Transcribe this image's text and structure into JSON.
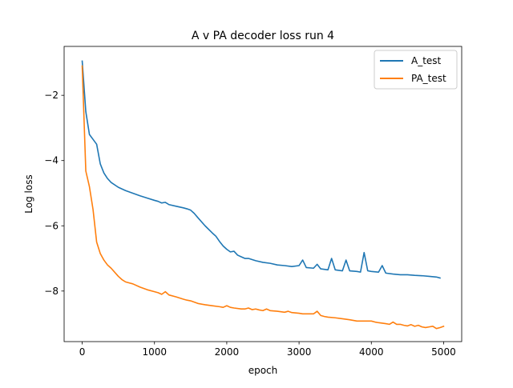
{
  "chart_data": {
    "type": "line",
    "title": "A v PA  decoder loss run 4",
    "xlabel": "epoch",
    "ylabel": "Log loss",
    "xlim": [
      -250,
      5250
    ],
    "ylim": [
      -9.55,
      -0.5
    ],
    "xticks": [
      0,
      1000,
      2000,
      3000,
      4000,
      5000
    ],
    "xtick_labels": [
      "0",
      "1000",
      "2000",
      "3000",
      "4000",
      "5000"
    ],
    "yticks": [
      -8,
      -6,
      -4,
      -2
    ],
    "ytick_labels": [
      "−8",
      "−6",
      "−4",
      "−2"
    ],
    "grid": false,
    "legend_position": "top-right",
    "series": [
      {
        "name": "A_test",
        "color": "#1f77b4",
        "x": [
          0,
          50,
          100,
          150,
          200,
          250,
          300,
          350,
          400,
          500,
          600,
          700,
          800,
          900,
          1000,
          1050,
          1100,
          1150,
          1200,
          1300,
          1400,
          1450,
          1500,
          1550,
          1600,
          1700,
          1800,
          1850,
          1900,
          1950,
          2000,
          2050,
          2100,
          2150,
          2200,
          2250,
          2300,
          2400,
          2500,
          2600,
          2700,
          2800,
          2900,
          3000,
          3050,
          3100,
          3200,
          3250,
          3300,
          3400,
          3450,
          3500,
          3600,
          3650,
          3700,
          3800,
          3850,
          3900,
          3950,
          4000,
          4100,
          4150,
          4200,
          4300,
          4400,
          4500,
          4600,
          4700,
          4800,
          4900,
          4950
        ],
        "y": [
          -0.95,
          -2.5,
          -3.2,
          -3.35,
          -3.5,
          -4.1,
          -4.38,
          -4.55,
          -4.67,
          -4.82,
          -4.92,
          -5.0,
          -5.08,
          -5.15,
          -5.22,
          -5.25,
          -5.3,
          -5.28,
          -5.35,
          -5.4,
          -5.45,
          -5.48,
          -5.52,
          -5.62,
          -5.75,
          -6.0,
          -6.22,
          -6.32,
          -6.48,
          -6.62,
          -6.72,
          -6.8,
          -6.78,
          -6.9,
          -6.95,
          -7.0,
          -7.0,
          -7.07,
          -7.12,
          -7.15,
          -7.2,
          -7.22,
          -7.25,
          -7.22,
          -7.05,
          -7.28,
          -7.3,
          -7.18,
          -7.32,
          -7.35,
          -7.0,
          -7.35,
          -7.38,
          -7.05,
          -7.38,
          -7.4,
          -7.42,
          -6.82,
          -7.38,
          -7.4,
          -7.42,
          -7.22,
          -7.45,
          -7.48,
          -7.5,
          -7.5,
          -7.52,
          -7.53,
          -7.55,
          -7.57,
          -7.6
        ]
      },
      {
        "name": "PA_test",
        "color": "#ff7f0e",
        "x": [
          0,
          50,
          100,
          150,
          200,
          250,
          300,
          350,
          400,
          500,
          550,
          600,
          650,
          700,
          800,
          900,
          1000,
          1050,
          1100,
          1150,
          1200,
          1300,
          1400,
          1450,
          1500,
          1600,
          1700,
          1800,
          1900,
          1950,
          2000,
          2050,
          2100,
          2200,
          2250,
          2300,
          2350,
          2400,
          2450,
          2500,
          2550,
          2600,
          2700,
          2800,
          2850,
          2900,
          3000,
          3050,
          3100,
          3200,
          3250,
          3300,
          3350,
          3400,
          3500,
          3600,
          3700,
          3800,
          3900,
          4000,
          4050,
          4100,
          4200,
          4250,
          4300,
          4350,
          4400,
          4450,
          4500,
          4550,
          4600,
          4650,
          4700,
          4750,
          4800,
          4850,
          4900,
          4950,
          5000
        ],
        "y": [
          -1.1,
          -4.32,
          -4.8,
          -5.5,
          -6.5,
          -6.85,
          -7.05,
          -7.2,
          -7.3,
          -7.55,
          -7.65,
          -7.72,
          -7.75,
          -7.78,
          -7.88,
          -7.96,
          -8.02,
          -8.05,
          -8.1,
          -8.02,
          -8.12,
          -8.18,
          -8.25,
          -8.28,
          -8.3,
          -8.38,
          -8.42,
          -8.45,
          -8.48,
          -8.5,
          -8.45,
          -8.5,
          -8.52,
          -8.55,
          -8.55,
          -8.52,
          -8.57,
          -8.55,
          -8.58,
          -8.6,
          -8.55,
          -8.6,
          -8.62,
          -8.65,
          -8.62,
          -8.66,
          -8.68,
          -8.7,
          -8.7,
          -8.7,
          -8.62,
          -8.75,
          -8.78,
          -8.8,
          -8.82,
          -8.85,
          -8.88,
          -8.92,
          -8.92,
          -8.92,
          -8.95,
          -8.97,
          -9.0,
          -9.02,
          -8.95,
          -9.02,
          -9.02,
          -9.05,
          -9.07,
          -9.03,
          -9.08,
          -9.05,
          -9.1,
          -9.12,
          -9.1,
          -9.08,
          -9.15,
          -9.12,
          -9.08
        ]
      }
    ]
  }
}
